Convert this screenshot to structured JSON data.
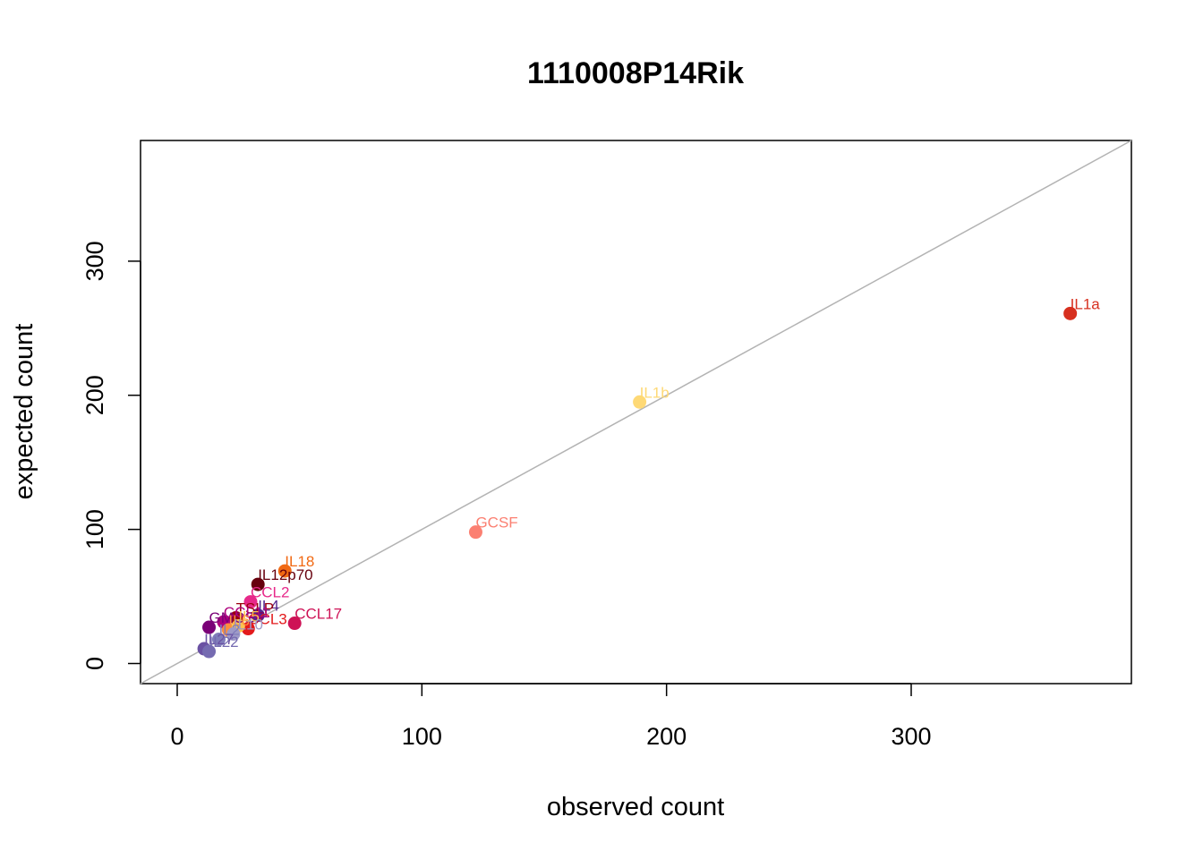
{
  "chart_data": {
    "type": "scatter",
    "title": "1110008P14Rik",
    "xlabel": "observed count",
    "ylabel": "expected count",
    "xlim": [
      -15,
      390
    ],
    "ylim": [
      -15,
      390
    ],
    "x_ticks": [
      0,
      100,
      200,
      300
    ],
    "y_ticks": [
      0,
      100,
      200,
      300
    ],
    "x_tick_labels": [
      "0",
      "100",
      "200",
      "300"
    ],
    "y_tick_labels": [
      "0",
      "100",
      "200",
      "300"
    ],
    "reference_line": {
      "type": "identity",
      "color": "#b3b3b3"
    },
    "grid": false,
    "legend": "none",
    "points": [
      {
        "label": "IL1a",
        "x": 365,
        "y": 261,
        "color": "#d7301f"
      },
      {
        "label": "IL1b",
        "x": 189,
        "y": 195,
        "color": "#fed976"
      },
      {
        "label": "GCSF",
        "x": 122,
        "y": 98,
        "color": "#fb8072"
      },
      {
        "label": "IL18",
        "x": 44,
        "y": 69,
        "color": "#f16913"
      },
      {
        "label": "IL12p70",
        "x": 33,
        "y": 59,
        "color": "#67000d"
      },
      {
        "label": "CCL2",
        "x": 30,
        "y": 46,
        "color": "#e7298a"
      },
      {
        "label": "CCL17",
        "x": 48,
        "y": 30,
        "color": "#ce1256"
      },
      {
        "label": "IL4",
        "x": 33,
        "y": 36,
        "color": "#54278f"
      },
      {
        "label": "CCL3",
        "x": 29,
        "y": 26,
        "color": "#e31a1c"
      },
      {
        "label": "TSLP",
        "x": 24,
        "y": 34,
        "color": "#99000d"
      },
      {
        "label": "GMCSF",
        "x": 13,
        "y": 27,
        "color": "#7a0177"
      },
      {
        "label": "CCL11",
        "x": 19,
        "y": 31,
        "color": "#ae017e"
      },
      {
        "label": "IL6",
        "x": 21,
        "y": 25,
        "color": "#fd8d3c"
      },
      {
        "label": "IL5",
        "x": 25,
        "y": 28,
        "color": "#fec44f"
      },
      {
        "label": "IL10",
        "x": 23,
        "y": 22,
        "color": "#9e9ac8"
      },
      {
        "label": "IL2",
        "x": 17,
        "y": 18,
        "color": "#807dba"
      },
      {
        "label": "IL27",
        "x": 11,
        "y": 11,
        "color": "#6a51a3"
      },
      {
        "label": "IL22",
        "x": 13,
        "y": 9,
        "color": "#756bb1"
      }
    ]
  }
}
